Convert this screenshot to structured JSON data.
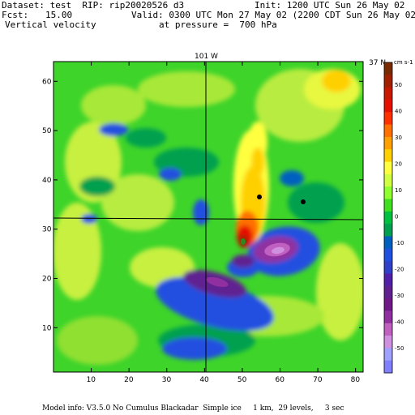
{
  "header": {
    "dataset": "Dataset: test  RIP: rip20020526 d3",
    "init": "Init: 1200 UTC Sun 26 May 02",
    "fcst_label": "Fcst:",
    "fcst_value": "15.00",
    "valid": "Valid: 0300 UTC Mon 27 May 02 (2200 CDT Sun 26 May 02)",
    "field": "Vertical velocity",
    "pressure": "at pressure =  700 hPa"
  },
  "map": {
    "meridian_label": "101 W",
    "parallel_label": "37 N",
    "x_ticks": [
      "10",
      "20",
      "30",
      "40",
      "50",
      "60",
      "70",
      "80"
    ],
    "y_ticks": [
      "10",
      "20",
      "30",
      "40",
      "50",
      "60"
    ]
  },
  "colorbar": {
    "units": "cm s-1",
    "labels": [
      "50",
      "40",
      "30",
      "20",
      "10",
      "0",
      "-10",
      "-20",
      "-30",
      "-40",
      "-50"
    ],
    "colors": [
      "#7a2a00",
      "#a02000",
      "#c81800",
      "#e61000",
      "#ff3000",
      "#ff7000",
      "#ffa000",
      "#ffd000",
      "#ffff40",
      "#d0ff40",
      "#90ff30",
      "#40e020",
      "#00c040",
      "#00a050",
      "#0060c0",
      "#2050e0",
      "#3040c8",
      "#5020a8",
      "#602090",
      "#701888",
      "#9030a0",
      "#c060c0",
      "#d090e0",
      "#a0a0ff",
      "#8080ff"
    ]
  },
  "footer": "Model info: V3.5.0 No Cumulus Blackadar  Simple ice     1 km,  29 levels,     3 sec"
}
